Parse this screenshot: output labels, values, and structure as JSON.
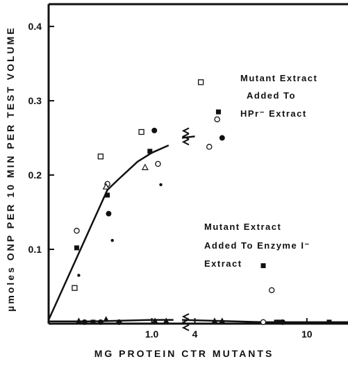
{
  "chart_data": {
    "type": "scatter",
    "title": "",
    "xlabel": "MG PROTEIN CTR MUTANTS",
    "ylabel": "µmoles ONP PER 10 MIN PER TEST VOLUME",
    "ylim": [
      0,
      0.43
    ],
    "y_ticks": [
      {
        "value": 0.1,
        "label": "0.1"
      },
      {
        "value": 0.2,
        "label": "0.2"
      },
      {
        "value": 0.3,
        "label": "0.3"
      },
      {
        "value": 0.4,
        "label": "0.4"
      }
    ],
    "x_scale": "log, broken axis",
    "x_segments": [
      {
        "xlim": [
          0.2,
          1.6
        ],
        "ticks": [
          {
            "value": 1.0,
            "label": "1.0"
          }
        ]
      },
      {
        "xlim": [
          3.6,
          14
        ],
        "ticks": [
          {
            "value": 4,
            "label": "4"
          },
          {
            "value": 10,
            "label": "10"
          }
        ]
      }
    ],
    "grid": false,
    "annotations": [
      {
        "id": "upper",
        "lines": [
          "Mutant Extract",
          "Added To",
          "HPr⁻ Extract"
        ]
      },
      {
        "id": "lower",
        "lines": [
          "Mutant Extract",
          "Added To Enzyme I⁻",
          "Extract"
        ]
      }
    ],
    "curves": [
      {
        "segment": 0,
        "points": [
          [
            0.2,
            0.005
          ],
          [
            0.5,
            0.18
          ],
          [
            0.6,
            0.195
          ],
          [
            0.8,
            0.218
          ],
          [
            1.0,
            0.23
          ],
          [
            1.3,
            0.24
          ]
        ]
      },
      {
        "segment": 1,
        "points": [
          [
            3.6,
            0.25
          ],
          [
            4.0,
            0.252
          ]
        ]
      },
      {
        "segment": 0,
        "points": [
          [
            0.2,
            0.003
          ],
          [
            0.4,
            0.003
          ],
          [
            1.0,
            0.005
          ],
          [
            1.4,
            0.005
          ]
        ]
      },
      {
        "segment": 1,
        "points": [
          [
            3.6,
            0.005
          ],
          [
            7,
            0.002
          ],
          [
            14,
            0.002
          ]
        ]
      }
    ],
    "series": [
      {
        "marker": "open-square",
        "points": [
          {
            "seg": 0,
            "x": 0.3,
            "y": 0.048
          },
          {
            "seg": 0,
            "x": 0.45,
            "y": 0.225
          },
          {
            "seg": 0,
            "x": 0.85,
            "y": 0.258
          },
          {
            "seg": 1,
            "x": 4.2,
            "y": 0.325
          }
        ]
      },
      {
        "marker": "open-circle",
        "points": [
          {
            "seg": 0,
            "x": 0.31,
            "y": 0.125
          },
          {
            "seg": 0,
            "x": 0.5,
            "y": 0.188
          },
          {
            "seg": 0,
            "x": 1.1,
            "y": 0.215
          },
          {
            "seg": 1,
            "x": 4.5,
            "y": 0.238
          },
          {
            "seg": 1,
            "x": 4.8,
            "y": 0.275
          },
          {
            "seg": 1,
            "x": 7.5,
            "y": 0.045
          },
          {
            "seg": 1,
            "x": 7.0,
            "y": 0.002
          }
        ]
      },
      {
        "marker": "filled-square",
        "points": [
          {
            "seg": 0,
            "x": 0.31,
            "y": 0.102
          },
          {
            "seg": 0,
            "x": 0.5,
            "y": 0.173
          },
          {
            "seg": 0,
            "x": 0.97,
            "y": 0.232
          },
          {
            "seg": 1,
            "x": 4.85,
            "y": 0.285
          },
          {
            "seg": 1,
            "x": 7.0,
            "y": 0.078
          },
          {
            "seg": 1,
            "x": 8.0,
            "y": 0.002
          },
          {
            "seg": 1,
            "x": 12.0,
            "y": 0.002
          },
          {
            "seg": 0,
            "x": 0.4,
            "y": 0.002
          },
          {
            "seg": 1,
            "x": 7.8,
            "y": 0.002
          }
        ]
      },
      {
        "marker": "filled-circle",
        "points": [
          {
            "seg": 0,
            "x": 0.51,
            "y": 0.148
          },
          {
            "seg": 0,
            "x": 1.04,
            "y": 0.26
          },
          {
            "seg": 1,
            "x": 5.0,
            "y": 0.25
          },
          {
            "seg": 0,
            "x": 0.35,
            "y": 0.002
          },
          {
            "seg": 0,
            "x": 0.45,
            "y": 0.002
          },
          {
            "seg": 0,
            "x": 0.6,
            "y": 0.002
          },
          {
            "seg": 1,
            "x": 8.2,
            "y": 0.002
          }
        ]
      },
      {
        "marker": "small-dot",
        "points": [
          {
            "seg": 0,
            "x": 0.32,
            "y": 0.065
          },
          {
            "seg": 0,
            "x": 0.54,
            "y": 0.112
          },
          {
            "seg": 0,
            "x": 1.15,
            "y": 0.187
          }
        ]
      },
      {
        "marker": "open-triangle",
        "points": [
          {
            "seg": 0,
            "x": 0.49,
            "y": 0.184
          },
          {
            "seg": 0,
            "x": 0.9,
            "y": 0.21
          }
        ]
      },
      {
        "marker": "filled-triangle",
        "points": [
          {
            "seg": 0,
            "x": 0.32,
            "y": 0.004
          },
          {
            "seg": 0,
            "x": 0.49,
            "y": 0.006
          },
          {
            "seg": 0,
            "x": 1.05,
            "y": 0.004
          },
          {
            "seg": 0,
            "x": 1.25,
            "y": 0.004
          },
          {
            "seg": 1,
            "x": 4.7,
            "y": 0.004
          },
          {
            "seg": 1,
            "x": 5.0,
            "y": 0.004
          }
        ]
      }
    ]
  }
}
